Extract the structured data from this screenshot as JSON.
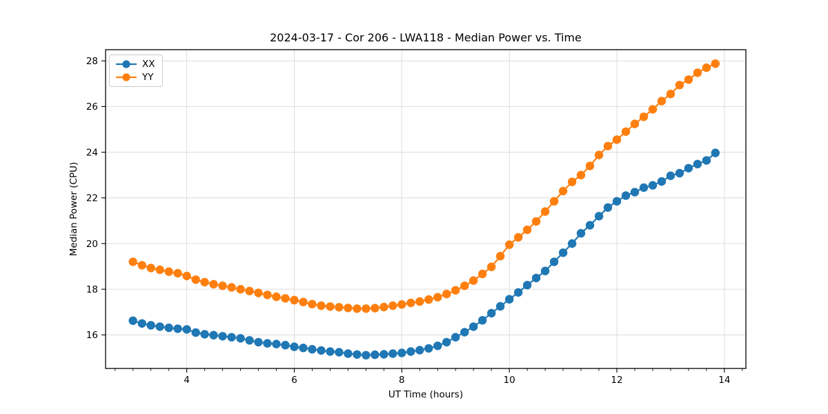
{
  "figure_background": "#ffffff",
  "chart_data": {
    "type": "line",
    "title": "2024-03-17 - Cor 206 - LWA118 - Median Power vs. Time",
    "xlabel": "UT Time (hours)",
    "ylabel": "Median Power (CPU)",
    "xlim": [
      2.49,
      14.4
    ],
    "ylim": [
      14.53,
      28.49
    ],
    "xticks": [
      4,
      6,
      8,
      10,
      12,
      14
    ],
    "yticks": [
      16,
      18,
      20,
      22,
      24,
      26,
      28
    ],
    "x_minor_step": 0.33333,
    "grid": true,
    "grid_color": "#dcdcdc",
    "spine_color": "#000000",
    "legend_position": "upper-left",
    "x": [
      3.0,
      3.167,
      3.333,
      3.5,
      3.667,
      3.833,
      4.0,
      4.167,
      4.333,
      4.5,
      4.667,
      4.833,
      5.0,
      5.167,
      5.333,
      5.5,
      5.667,
      5.833,
      6.0,
      6.167,
      6.333,
      6.5,
      6.667,
      6.833,
      7.0,
      7.167,
      7.333,
      7.5,
      7.667,
      7.833,
      8.0,
      8.167,
      8.333,
      8.5,
      8.667,
      8.833,
      9.0,
      9.167,
      9.333,
      9.5,
      9.667,
      9.833,
      10.0,
      10.167,
      10.333,
      10.5,
      10.667,
      10.833,
      11.0,
      11.167,
      11.333,
      11.5,
      11.667,
      11.833,
      12.0,
      12.167,
      12.333,
      12.5,
      12.667,
      12.833,
      13.0,
      13.167,
      13.333,
      13.5,
      13.667,
      13.833
    ],
    "series": [
      {
        "name": "XX",
        "color": "#1f77b4",
        "values": [
          16.62,
          16.5,
          16.42,
          16.36,
          16.31,
          16.27,
          16.24,
          16.1,
          16.03,
          15.99,
          15.94,
          15.9,
          15.85,
          15.76,
          15.68,
          15.63,
          15.6,
          15.55,
          15.48,
          15.43,
          15.37,
          15.32,
          15.27,
          15.24,
          15.18,
          15.14,
          15.11,
          15.13,
          15.15,
          15.18,
          15.21,
          15.27,
          15.33,
          15.41,
          15.52,
          15.68,
          15.9,
          16.12,
          16.36,
          16.64,
          16.95,
          17.25,
          17.56,
          17.86,
          18.18,
          18.49,
          18.8,
          19.2,
          19.6,
          20.0,
          20.45,
          20.8,
          21.2,
          21.58,
          21.85,
          22.1,
          22.25,
          22.45,
          22.55,
          22.72,
          22.97,
          23.08,
          23.3,
          23.48,
          23.64,
          23.97
        ]
      },
      {
        "name": "YY",
        "color": "#ff7f0e",
        "values": [
          19.2,
          19.05,
          18.93,
          18.85,
          18.77,
          18.7,
          18.58,
          18.42,
          18.31,
          18.22,
          18.15,
          18.08,
          18.0,
          17.92,
          17.84,
          17.75,
          17.67,
          17.6,
          17.52,
          17.44,
          17.35,
          17.28,
          17.24,
          17.21,
          17.18,
          17.15,
          17.15,
          17.17,
          17.22,
          17.28,
          17.33,
          17.4,
          17.46,
          17.55,
          17.65,
          17.79,
          17.95,
          18.15,
          18.38,
          18.67,
          18.98,
          19.45,
          19.95,
          20.27,
          20.6,
          20.97,
          21.4,
          21.85,
          22.3,
          22.7,
          23.0,
          23.4,
          23.88,
          24.27,
          24.55,
          24.9,
          25.24,
          25.55,
          25.88,
          26.24,
          26.55,
          26.94,
          27.18,
          27.48,
          27.7,
          27.88
        ]
      }
    ]
  }
}
